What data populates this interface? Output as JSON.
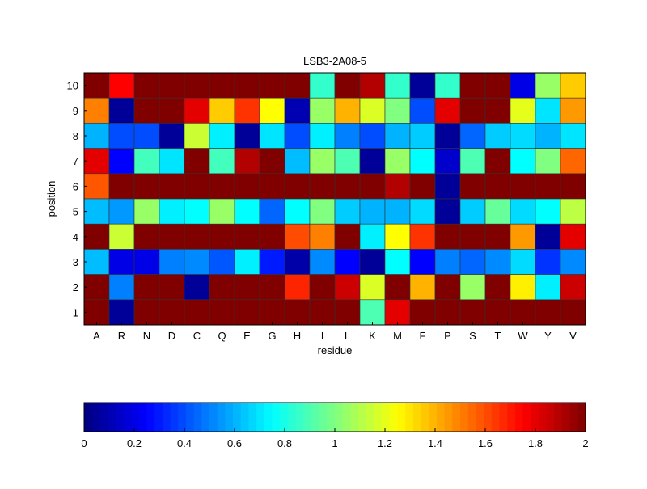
{
  "chart_data": {
    "type": "heatmap",
    "title": "LSB3-2A08-5",
    "xlabel": "residue",
    "ylabel": "position",
    "colormap": "jet",
    "clim": [
      0,
      2
    ],
    "x_categories": [
      "A",
      "R",
      "N",
      "D",
      "C",
      "Q",
      "E",
      "G",
      "H",
      "I",
      "L",
      "K",
      "M",
      "F",
      "P",
      "S",
      "T",
      "W",
      "Y",
      "V"
    ],
    "y_categories": [
      "10",
      "9",
      "8",
      "7",
      "6",
      "5",
      "4",
      "3",
      "2",
      "1"
    ],
    "values": [
      [
        2,
        1.75,
        2,
        2,
        2,
        2,
        2,
        2,
        2,
        0.85,
        2,
        1.9,
        0.85,
        0.05,
        0.85,
        2,
        2,
        0.2,
        1.05,
        1.35
      ],
      [
        1.5,
        0.05,
        2,
        2,
        1.8,
        1.35,
        1.65,
        1.25,
        0.1,
        1.05,
        1.4,
        1.18,
        1.0,
        0.4,
        1.8,
        2,
        2,
        1.2,
        0.7,
        1.45
      ],
      [
        0.6,
        0.4,
        0.4,
        0.05,
        1.15,
        0.72,
        0.05,
        0.7,
        0.4,
        0.72,
        0.5,
        0.4,
        0.6,
        0.65,
        0.05,
        0.45,
        0.65,
        0.68,
        0.6,
        0.7
      ],
      [
        1.8,
        0.25,
        0.88,
        0.7,
        2,
        0.88,
        1.9,
        2,
        0.62,
        1.05,
        0.9,
        0.05,
        1.05,
        0.75,
        0.15,
        0.9,
        2,
        0.75,
        1.0,
        1.55
      ],
      [
        1.58,
        2,
        2,
        2,
        2,
        2,
        2,
        2,
        2,
        2,
        2,
        2,
        1.9,
        2,
        0.05,
        2,
        2,
        2,
        2,
        2
      ],
      [
        0.62,
        0.55,
        1.05,
        0.72,
        0.75,
        1.05,
        0.75,
        0.45,
        0.75,
        1.0,
        0.65,
        0.6,
        0.6,
        0.68,
        0.05,
        0.65,
        0.95,
        0.68,
        0.75,
        1.12
      ],
      [
        2,
        1.15,
        2,
        2,
        2,
        2,
        2,
        2,
        1.6,
        1.5,
        2,
        0.72,
        1.25,
        1.65,
        2,
        2,
        2,
        1.45,
        0.05,
        1.8
      ],
      [
        0.62,
        0.2,
        0.2,
        0.5,
        0.52,
        0.42,
        0.72,
        0.3,
        0.08,
        0.52,
        0.25,
        0.05,
        0.75,
        0.25,
        0.5,
        0.45,
        0.52,
        0.68,
        0.35,
        0.52
      ],
      [
        2,
        0.5,
        2,
        2,
        0.05,
        2,
        2,
        2,
        1.68,
        2,
        1.85,
        1.18,
        2,
        1.4,
        2,
        1.05,
        2,
        1.28,
        0.72,
        1.85
      ],
      [
        2,
        0.05,
        2,
        2,
        2,
        2,
        2,
        2,
        2,
        2,
        2,
        0.9,
        1.8,
        2,
        2,
        2,
        2,
        2,
        2,
        2
      ]
    ],
    "colorbar": {
      "orientation": "horizontal",
      "ticks": [
        "0",
        "0.2",
        "0.4",
        "0.6",
        "0.8",
        "1",
        "1.2",
        "1.4",
        "1.6",
        "1.8",
        "2"
      ]
    }
  }
}
